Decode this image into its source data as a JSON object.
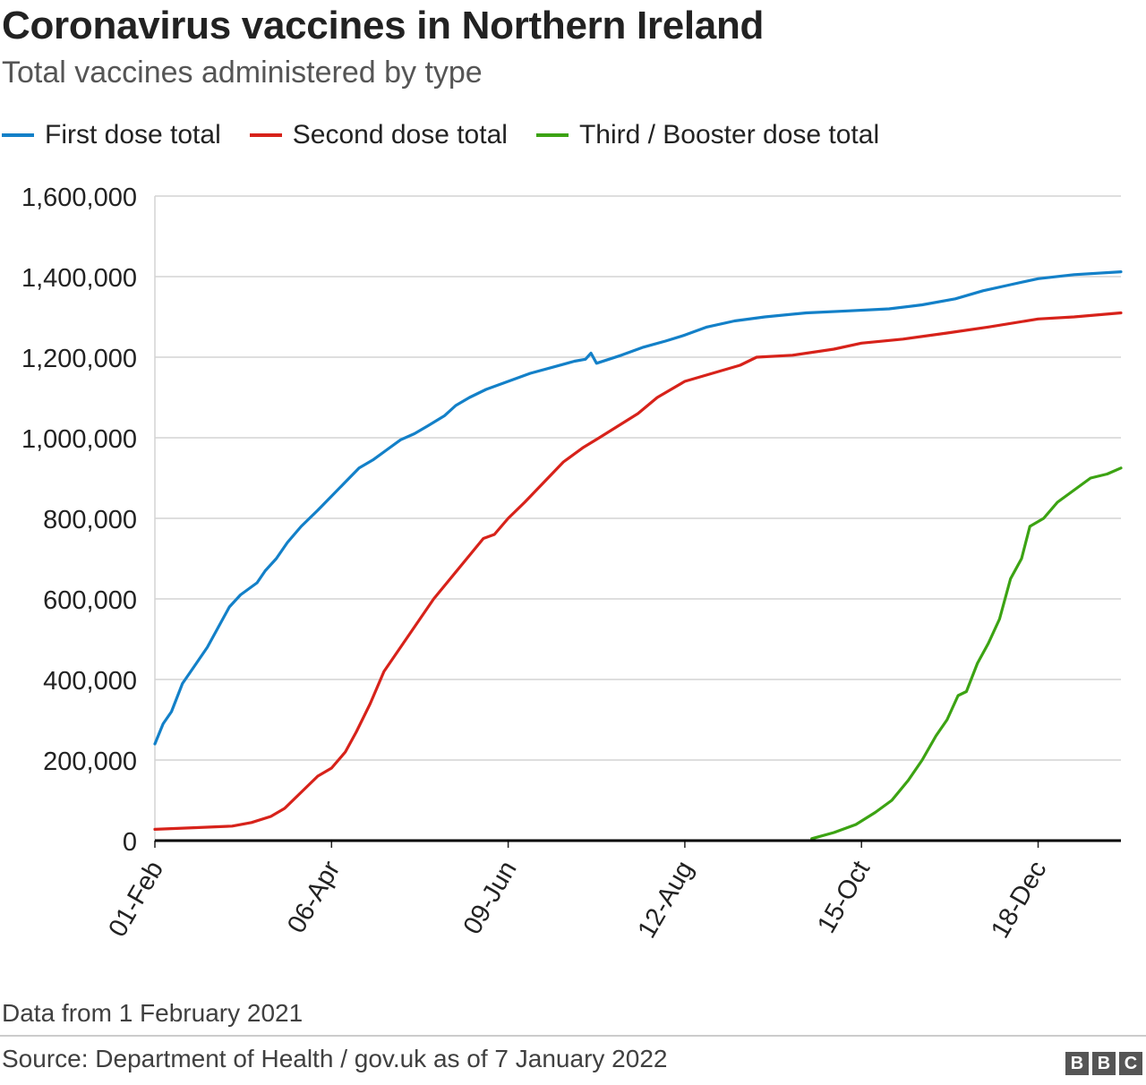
{
  "header": {
    "title": "Coronavirus vaccines in Northern Ireland",
    "subtitle": "Total vaccines administered by type"
  },
  "legend": [
    {
      "label": "First dose total",
      "color": "#1380c8"
    },
    {
      "label": "Second dose total",
      "color": "#d7221a"
    },
    {
      "label": "Third / Booster dose total",
      "color": "#3ca313"
    }
  ],
  "footer": {
    "note": "Data from 1 February 2021",
    "source": "Source: Department of Health / gov.uk as of 7 January 2022",
    "logo": [
      "B",
      "B",
      "C"
    ]
  },
  "chart_data": {
    "type": "line",
    "x_unit": "date",
    "x_ticks": [
      {
        "label": "01-Feb",
        "date": "2021-02-01"
      },
      {
        "label": "06-Apr",
        "date": "2021-04-06"
      },
      {
        "label": "09-Jun",
        "date": "2021-06-09"
      },
      {
        "label": "12-Aug",
        "date": "2021-08-12"
      },
      {
        "label": "15-Oct",
        "date": "2021-10-15"
      },
      {
        "label": "18-Dec",
        "date": "2021-12-18"
      }
    ],
    "xlim": [
      "2021-02-01",
      "2022-01-17"
    ],
    "y_ticks": [
      {
        "label": "0",
        "value": 0
      },
      {
        "label": "200,000",
        "value": 200000
      },
      {
        "label": "400,000",
        "value": 400000
      },
      {
        "label": "600,000",
        "value": 600000
      },
      {
        "label": "800,000",
        "value": 800000
      },
      {
        "label": "1,000,000",
        "value": 1000000
      },
      {
        "label": "1,200,000",
        "value": 1200000
      },
      {
        "label": "1,400,000",
        "value": 1400000
      },
      {
        "label": "1,600,000",
        "value": 1600000
      }
    ],
    "ylim": [
      0,
      1600000
    ],
    "grid": true,
    "legend_position": "top-left",
    "series": [
      {
        "name": "First dose total",
        "color": "#1380c8",
        "points": [
          [
            "2021-02-01",
            240000
          ],
          [
            "2021-02-04",
            290000
          ],
          [
            "2021-02-07",
            320000
          ],
          [
            "2021-02-11",
            390000
          ],
          [
            "2021-02-15",
            430000
          ],
          [
            "2021-02-20",
            480000
          ],
          [
            "2021-02-24",
            530000
          ],
          [
            "2021-02-28",
            580000
          ],
          [
            "2021-03-04",
            610000
          ],
          [
            "2021-03-10",
            640000
          ],
          [
            "2021-03-13",
            670000
          ],
          [
            "2021-03-17",
            700000
          ],
          [
            "2021-03-21",
            740000
          ],
          [
            "2021-03-26",
            780000
          ],
          [
            "2021-04-01",
            820000
          ],
          [
            "2021-04-06",
            855000
          ],
          [
            "2021-04-11",
            890000
          ],
          [
            "2021-04-16",
            925000
          ],
          [
            "2021-04-21",
            945000
          ],
          [
            "2021-04-26",
            970000
          ],
          [
            "2021-05-01",
            995000
          ],
          [
            "2021-05-06",
            1010000
          ],
          [
            "2021-05-11",
            1030000
          ],
          [
            "2021-05-17",
            1055000
          ],
          [
            "2021-05-21",
            1080000
          ],
          [
            "2021-05-26",
            1100000
          ],
          [
            "2021-06-01",
            1120000
          ],
          [
            "2021-06-09",
            1140000
          ],
          [
            "2021-06-17",
            1160000
          ],
          [
            "2021-06-25",
            1175000
          ],
          [
            "2021-07-03",
            1190000
          ],
          [
            "2021-07-07",
            1195000
          ],
          [
            "2021-07-09",
            1210000
          ],
          [
            "2021-07-11",
            1185000
          ],
          [
            "2021-07-20",
            1205000
          ],
          [
            "2021-07-28",
            1225000
          ],
          [
            "2021-08-05",
            1240000
          ],
          [
            "2021-08-12",
            1255000
          ],
          [
            "2021-08-20",
            1275000
          ],
          [
            "2021-08-30",
            1290000
          ],
          [
            "2021-09-10",
            1300000
          ],
          [
            "2021-09-25",
            1310000
          ],
          [
            "2021-10-10",
            1315000
          ],
          [
            "2021-10-25",
            1320000
          ],
          [
            "2021-11-06",
            1330000
          ],
          [
            "2021-11-18",
            1345000
          ],
          [
            "2021-11-28",
            1365000
          ],
          [
            "2021-12-08",
            1380000
          ],
          [
            "2021-12-18",
            1395000
          ],
          [
            "2021-12-31",
            1405000
          ],
          [
            "2022-01-17",
            1412000
          ]
        ]
      },
      {
        "name": "Second dose total",
        "color": "#d7221a",
        "points": [
          [
            "2021-02-01",
            28000
          ],
          [
            "2021-02-15",
            32000
          ],
          [
            "2021-03-01",
            36000
          ],
          [
            "2021-03-08",
            45000
          ],
          [
            "2021-03-15",
            60000
          ],
          [
            "2021-03-20",
            80000
          ],
          [
            "2021-03-26",
            120000
          ],
          [
            "2021-04-01",
            160000
          ],
          [
            "2021-04-06",
            180000
          ],
          [
            "2021-04-11",
            220000
          ],
          [
            "2021-04-15",
            270000
          ],
          [
            "2021-04-20",
            340000
          ],
          [
            "2021-04-25",
            420000
          ],
          [
            "2021-05-01",
            480000
          ],
          [
            "2021-05-07",
            540000
          ],
          [
            "2021-05-13",
            600000
          ],
          [
            "2021-05-19",
            650000
          ],
          [
            "2021-05-25",
            700000
          ],
          [
            "2021-05-31",
            750000
          ],
          [
            "2021-06-04",
            760000
          ],
          [
            "2021-06-09",
            800000
          ],
          [
            "2021-06-15",
            840000
          ],
          [
            "2021-06-22",
            890000
          ],
          [
            "2021-06-29",
            940000
          ],
          [
            "2021-07-06",
            975000
          ],
          [
            "2021-07-12",
            1000000
          ],
          [
            "2021-07-19",
            1030000
          ],
          [
            "2021-07-26",
            1060000
          ],
          [
            "2021-08-02",
            1100000
          ],
          [
            "2021-08-12",
            1140000
          ],
          [
            "2021-08-22",
            1160000
          ],
          [
            "2021-09-01",
            1180000
          ],
          [
            "2021-09-07",
            1200000
          ],
          [
            "2021-09-20",
            1205000
          ],
          [
            "2021-10-05",
            1220000
          ],
          [
            "2021-10-15",
            1235000
          ],
          [
            "2021-10-30",
            1245000
          ],
          [
            "2021-11-15",
            1260000
          ],
          [
            "2021-11-30",
            1275000
          ],
          [
            "2021-12-18",
            1295000
          ],
          [
            "2021-12-31",
            1300000
          ],
          [
            "2022-01-17",
            1310000
          ]
        ]
      },
      {
        "name": "Third / Booster dose total",
        "color": "#3ca313",
        "points": [
          [
            "2021-09-27",
            5000
          ],
          [
            "2021-10-05",
            20000
          ],
          [
            "2021-10-13",
            40000
          ],
          [
            "2021-10-20",
            70000
          ],
          [
            "2021-10-26",
            100000
          ],
          [
            "2021-11-01",
            150000
          ],
          [
            "2021-11-06",
            200000
          ],
          [
            "2021-11-11",
            260000
          ],
          [
            "2021-11-15",
            300000
          ],
          [
            "2021-11-19",
            360000
          ],
          [
            "2021-11-22",
            370000
          ],
          [
            "2021-11-26",
            440000
          ],
          [
            "2021-11-30",
            490000
          ],
          [
            "2021-12-04",
            550000
          ],
          [
            "2021-12-08",
            650000
          ],
          [
            "2021-12-12",
            700000
          ],
          [
            "2021-12-15",
            780000
          ],
          [
            "2021-12-20",
            800000
          ],
          [
            "2021-12-25",
            840000
          ],
          [
            "2021-12-31",
            870000
          ],
          [
            "2022-01-06",
            900000
          ],
          [
            "2022-01-12",
            910000
          ],
          [
            "2022-01-17",
            925000
          ]
        ]
      }
    ]
  }
}
